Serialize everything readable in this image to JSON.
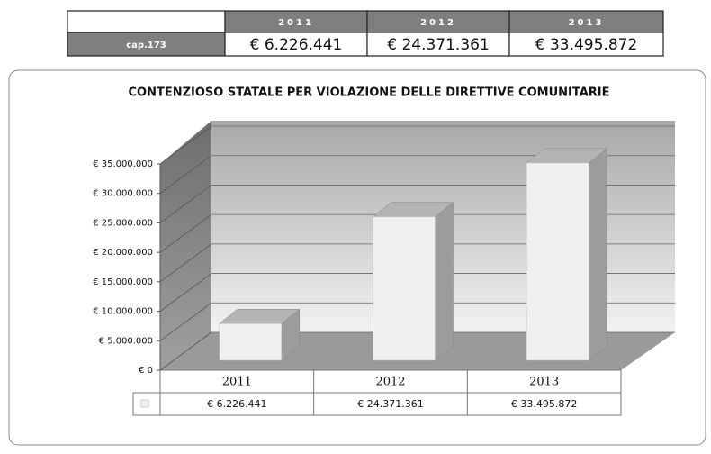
{
  "table": {
    "header": [
      "",
      "2011",
      "2012",
      "2013"
    ],
    "rows": [
      [
        "cap.173",
        "€ 6.226.441",
        "€ 24.371.361",
        "€ 33.495.872"
      ]
    ]
  },
  "chart_data": {
    "type": "bar",
    "title": "CONTENZIOSO STATALE PER VIOLAZIONE DELLE DIRETTIVE COMUNITARIE",
    "categories": [
      "2011",
      "2012",
      "2013"
    ],
    "values": [
      6226441,
      24371361,
      33495872
    ],
    "value_labels": [
      "€ 6.226.441",
      "€ 24.371.361",
      "€ 33.495.872"
    ],
    "color": "#efefef",
    "ylim": [
      0,
      35000000
    ],
    "yticks": [
      {
        "value": 0,
        "label": "€ 0"
      },
      {
        "value": 5000000,
        "label": "€ 5.000.000"
      },
      {
        "value": 10000000,
        "label": "€ 10.000.000"
      },
      {
        "value": 15000000,
        "label": "€ 15.000.000"
      },
      {
        "value": 20000000,
        "label": "€ 20.000.000"
      },
      {
        "value": 25000000,
        "label": "€ 25.000.000"
      },
      {
        "value": 30000000,
        "label": "€ 30.000.000"
      },
      {
        "value": 35000000,
        "label": "€ 35.000.000"
      }
    ],
    "grid": true
  }
}
